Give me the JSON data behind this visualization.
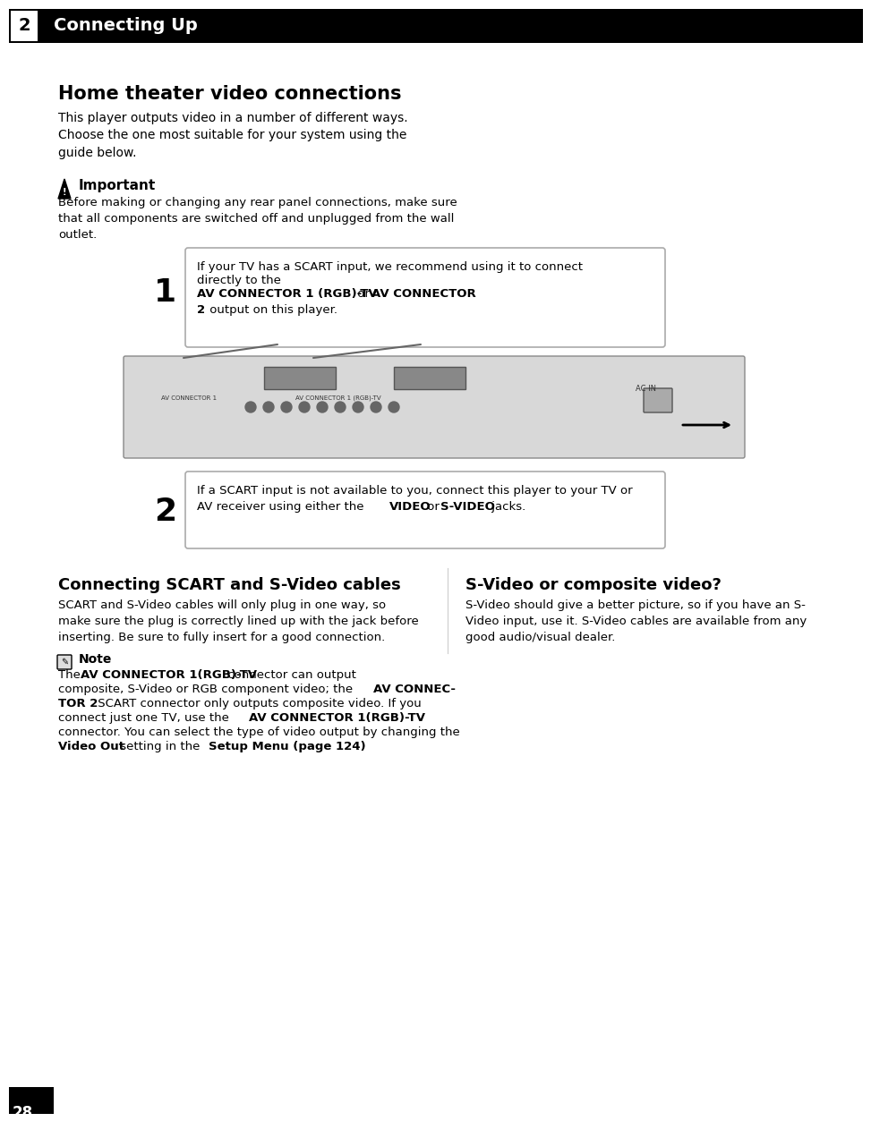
{
  "page_num": "28",
  "chapter_num": "2",
  "chapter_title": "Connecting Up",
  "main_title": "Home theater video connections",
  "intro_text": "This player outputs video in a number of different ways.\nChoose the one most suitable for your system using the\nguide below.",
  "important_label": "Important",
  "important_text": "Before making or changing any rear panel connections, make sure\nthat all components are switched off and unplugged from the wall\noutlet.",
  "step1_num": "1",
  "step1_text_plain": "If your TV has a SCART input, we recommend using it to connect\ndirectly to the ",
  "step1_text_bold1": "AV CONNECTOR 1 (RGB)-TV",
  "step1_text_mid": " or ",
  "step1_text_bold2": "AV CONNECTOR\n2",
  "step1_text_end": " output on this player.",
  "step2_num": "2",
  "step2_text_plain": "If a SCART input is not available to you, connect this player to your TV or\nAV receiver using either the ",
  "step2_text_bold1": "VIDEO",
  "step2_text_mid": " or ",
  "step2_text_bold2": "S-VIDEO",
  "step2_text_end": " jacks.",
  "section2_title": "Connecting SCART and S-Video cables",
  "section2_text": "SCART and S-Video cables will only plug in one way, so\nmake sure the plug is correctly lined up with the jack before\ninserting. Be sure to fully insert for a good connection.",
  "note_label": "Note",
  "note_text_parts": [
    [
      "The ",
      false
    ],
    [
      "AV CONNECTOR 1(RGB)-TV",
      true
    ],
    [
      " connector can output\ncomposite, S-Video or RGB component video; the ",
      false
    ],
    [
      "AV CONNEC-\nTOR 2",
      true
    ],
    [
      " SCART connector only outputs composite video. If you\nconnect just one TV, use the ",
      false
    ],
    [
      "AV CONNECTOR 1(RGB)-TV",
      true
    ],
    [
      "\nconnector. You can select the type of video output by changing the\n",
      false
    ],
    [
      "Video Out",
      true
    ],
    [
      " setting in the ",
      false
    ],
    [
      "Setup Menu (page 124)",
      true
    ],
    [
      ".",
      false
    ]
  ],
  "section3_title": "S-Video or composite video?",
  "section3_text": "S-Video should give a better picture, so if you have an S-\nVideo input, use it. S-Video cables are available from any\ngood audio/visual dealer.",
  "bg_color": "#ffffff",
  "header_bg": "#000000",
  "header_text_color": "#ffffff",
  "box_border_color": "#aaaaaa",
  "body_text_color": "#000000"
}
